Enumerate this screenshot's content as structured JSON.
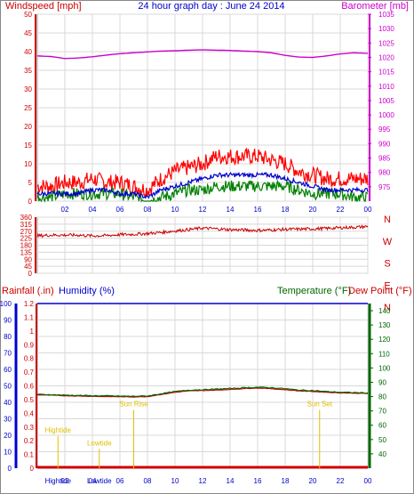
{
  "title": "24 hour graph day : June 24 2014",
  "colors": {
    "wind": "#ff0000",
    "wind_avg": "#0000cc",
    "gust_low": "#008000",
    "barometer": "#cc00cc",
    "direction": "#cc0000",
    "rain": "#cc0000",
    "humidity": "#0000cc",
    "temperature": "#006600",
    "dewpoint": "#cc0000",
    "tide": "#e0c000",
    "grid": "#d8d8d8"
  },
  "chart_data": [
    {
      "type": "line",
      "name": "wind-barometer",
      "left_axis_label": "Windspeed [mph]",
      "right_axis_label": "Barometer [mb]",
      "ylim_left": [
        0,
        50
      ],
      "ylim_right": [
        970,
        1035
      ],
      "y_ticks_left": [
        "0",
        "5",
        "10",
        "15",
        "20",
        "25",
        "30",
        "35",
        "40",
        "45",
        "50"
      ],
      "y_ticks_right": [
        "975",
        "980",
        "985",
        "990",
        "995",
        "1000",
        "1005",
        "1010",
        "1015",
        "1020",
        "1025",
        "1030",
        "1035"
      ],
      "x_ticks": [
        "02",
        "04",
        "06",
        "08",
        "10",
        "12",
        "14",
        "16",
        "18",
        "20",
        "22",
        "00"
      ],
      "x_hours": [
        0,
        24
      ],
      "series": [
        {
          "name": "Windspeed gust",
          "x": [
            0,
            1,
            2,
            3,
            4,
            5,
            6,
            7,
            8,
            9,
            10,
            11,
            12,
            13,
            14,
            15,
            16,
            17,
            18,
            19,
            20,
            21,
            22,
            23,
            24
          ],
          "values": [
            4,
            4,
            5,
            5,
            6,
            5,
            5,
            4,
            3,
            6,
            8,
            9,
            10,
            12,
            12,
            12,
            12,
            11,
            10,
            8,
            7,
            6,
            6,
            6,
            6
          ]
        },
        {
          "name": "Windspeed average",
          "x": [
            0,
            1,
            2,
            3,
            4,
            5,
            6,
            7,
            8,
            9,
            10,
            11,
            12,
            13,
            14,
            15,
            16,
            17,
            18,
            19,
            20,
            21,
            22,
            23,
            24
          ],
          "values": [
            2,
            2,
            2,
            2,
            3,
            3,
            2,
            2,
            1,
            3,
            4,
            5,
            6,
            7,
            7,
            7,
            7,
            7,
            6,
            5,
            4,
            3,
            3,
            3,
            3
          ]
        },
        {
          "name": "Windspeed low",
          "x": [
            0,
            1,
            2,
            3,
            4,
            5,
            6,
            7,
            8,
            9,
            10,
            11,
            12,
            13,
            14,
            15,
            16,
            17,
            18,
            19,
            20,
            21,
            22,
            23,
            24
          ],
          "values": [
            1,
            1,
            2,
            2,
            2,
            2,
            2,
            1,
            0,
            1,
            2,
            3,
            3,
            4,
            4,
            4,
            4,
            4,
            4,
            3,
            2,
            2,
            2,
            1,
            1
          ]
        },
        {
          "name": "Barometer",
          "x": [
            0,
            1,
            2,
            3,
            4,
            5,
            6,
            7,
            8,
            9,
            10,
            11,
            12,
            13,
            14,
            15,
            16,
            17,
            18,
            19,
            20,
            21,
            22,
            23,
            24
          ],
          "values": [
            1020.5,
            1020.3,
            1019.6,
            1019.8,
            1020.2,
            1020.8,
            1021.3,
            1021.6,
            1021.9,
            1022.2,
            1022.3,
            1022.5,
            1022.6,
            1022.5,
            1022.4,
            1022.2,
            1022.0,
            1021.6,
            1020.7,
            1020.1,
            1020.0,
            1020.5,
            1021.2,
            1021.6,
            1021.4
          ]
        }
      ]
    },
    {
      "type": "line",
      "name": "wind-direction",
      "ylim": [
        0,
        360
      ],
      "y_ticks": [
        "0",
        "45",
        "90",
        "135",
        "180",
        "225",
        "270",
        "315",
        "360"
      ],
      "compass_labels": [
        "N",
        "W",
        "S",
        "E",
        "N"
      ],
      "series": [
        {
          "name": "Direction",
          "x": [
            0,
            1,
            2,
            3,
            4,
            5,
            6,
            7,
            8,
            9,
            10,
            11,
            12,
            13,
            14,
            15,
            16,
            17,
            18,
            19,
            20,
            21,
            22,
            23,
            24
          ],
          "values": [
            240,
            245,
            245,
            245,
            240,
            242,
            248,
            250,
            255,
            262,
            272,
            280,
            290,
            285,
            280,
            278,
            275,
            278,
            282,
            283,
            285,
            288,
            292,
            295,
            300
          ]
        }
      ]
    },
    {
      "type": "line",
      "name": "rain-humidity-temperature",
      "left_axis_label_rain": "Rainfall (.in)",
      "left_axis_label_humidity": "Humidity (%)",
      "right_axis_label_temp": "Temperature (°F)",
      "right_axis_label_dew": "Dew Point (°F)",
      "ylim_humidity": [
        0,
        100
      ],
      "ylim_rain": [
        0,
        1.2
      ],
      "ylim_temp": [
        30,
        145
      ],
      "humidity_ticks": [
        "0",
        "10",
        "20",
        "30",
        "40",
        "50",
        "60",
        "70",
        "80",
        "90",
        "100"
      ],
      "rain_ticks": [
        "0",
        "0.1",
        "0.2",
        "0.3",
        "0.4",
        "0.5",
        "0.6",
        "0.7",
        "0.8",
        "0.9",
        "1",
        "1.1",
        "1.2"
      ],
      "temp_ticks": [
        "40",
        "50",
        "60",
        "70",
        "80",
        "90",
        "100",
        "110",
        "120",
        "130",
        "140"
      ],
      "series": [
        {
          "name": "Humidity",
          "x": [
            0,
            24
          ],
          "values": [
            100,
            100
          ]
        },
        {
          "name": "Rainfall",
          "x": [
            0,
            24
          ],
          "values": [
            0,
            0
          ]
        },
        {
          "name": "Temperature",
          "x": [
            0,
            1,
            2,
            3,
            4,
            5,
            6,
            7,
            8,
            9,
            10,
            11,
            12,
            13,
            14,
            15,
            16,
            17,
            18,
            19,
            20,
            21,
            22,
            23,
            24
          ],
          "values": [
            81.5,
            81.3,
            81.0,
            80.8,
            80.6,
            80.5,
            80.3,
            80.2,
            80.4,
            82.0,
            83.5,
            84.5,
            84.8,
            85.2,
            85.6,
            86.2,
            86.5,
            86.2,
            85.5,
            84.5,
            84.2,
            83.5,
            83.0,
            82.8,
            82.5
          ]
        },
        {
          "name": "Dew Point",
          "x": [
            0,
            1,
            2,
            3,
            4,
            5,
            6,
            7,
            8,
            9,
            10,
            11,
            12,
            13,
            14,
            15,
            16,
            17,
            18,
            19,
            20,
            21,
            22,
            23,
            24
          ],
          "values": [
            81.2,
            81.0,
            80.6,
            80.4,
            80.2,
            80.0,
            79.9,
            79.8,
            80.0,
            81.5,
            83.0,
            84.0,
            84.2,
            84.5,
            85.0,
            85.6,
            86.0,
            85.5,
            84.8,
            84.0,
            83.6,
            83.0,
            82.6,
            82.4,
            82.2
          ]
        }
      ],
      "annotations": [
        {
          "text": "Hightide",
          "hour": 1.5,
          "level": 0.26
        },
        {
          "text": "Lowtide",
          "hour": 4.5,
          "level": 0.165
        },
        {
          "text": "Sun Rise",
          "hour": 7.0,
          "level": 0.45
        },
        {
          "text": "Sun Set",
          "hour": 20.5,
          "level": 0.45
        }
      ],
      "bottom_labels": [
        "Hightide",
        "Lowtide"
      ]
    }
  ]
}
